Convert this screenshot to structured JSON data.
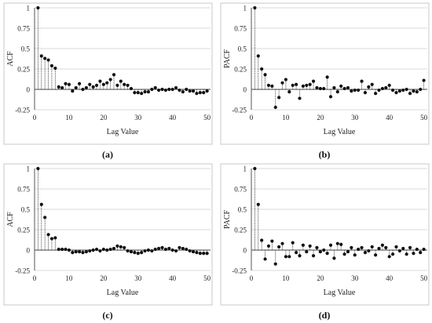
{
  "chart_data": [
    {
      "type": "stem",
      "caption": "(a)",
      "ylabel": "ACF",
      "xlabel": "Lag Value",
      "xlim": [
        0,
        51
      ],
      "ylim": [
        -0.25,
        1
      ],
      "xticks": [
        "0",
        "10",
        "20",
        "30",
        "40",
        "50"
      ],
      "yticks": [
        "1",
        "0.75",
        "0.5",
        "0.25",
        "0",
        "-0.25"
      ],
      "x": [
        1,
        2,
        3,
        4,
        5,
        6,
        7,
        8,
        9,
        10,
        11,
        12,
        13,
        14,
        15,
        16,
        17,
        18,
        19,
        20,
        21,
        22,
        23,
        24,
        25,
        26,
        27,
        28,
        29,
        30,
        31,
        32,
        33,
        34,
        35,
        36,
        37,
        38,
        39,
        40,
        41,
        42,
        43,
        44,
        45,
        46,
        47,
        48,
        49,
        50
      ],
      "values": [
        1.0,
        0.41,
        0.38,
        0.36,
        0.29,
        0.26,
        0.03,
        0.02,
        0.07,
        0.06,
        -0.02,
        0.02,
        0.07,
        0.0,
        0.02,
        0.06,
        0.03,
        0.05,
        0.1,
        0.06,
        0.08,
        0.12,
        0.18,
        0.05,
        0.1,
        0.06,
        0.05,
        0.01,
        -0.04,
        -0.04,
        -0.05,
        -0.03,
        -0.03,
        0.0,
        0.02,
        -0.01,
        0.0,
        -0.01,
        0.0,
        0.0,
        0.02,
        -0.01,
        -0.03,
        0.0,
        -0.02,
        -0.02,
        -0.05,
        -0.04,
        -0.04,
        -0.02
      ]
    },
    {
      "type": "stem",
      "caption": "(b)",
      "ylabel": "PACF",
      "xlabel": "Lag Value",
      "xlim": [
        0,
        51
      ],
      "ylim": [
        -0.25,
        1
      ],
      "xticks": [
        "0",
        "10",
        "20",
        "30",
        "40",
        "50"
      ],
      "yticks": [
        "1",
        "0.75",
        "0.5",
        "0.25",
        "0",
        "-0.25"
      ],
      "x": [
        1,
        2,
        3,
        4,
        5,
        6,
        7,
        8,
        9,
        10,
        11,
        12,
        13,
        14,
        15,
        16,
        17,
        18,
        19,
        20,
        21,
        22,
        23,
        24,
        25,
        26,
        27,
        28,
        29,
        30,
        31,
        32,
        33,
        34,
        35,
        36,
        37,
        38,
        39,
        40,
        41,
        42,
        43,
        44,
        45,
        46,
        47,
        48,
        49,
        50
      ],
      "values": [
        1.0,
        0.41,
        0.25,
        0.18,
        0.05,
        0.04,
        -0.22,
        -0.1,
        0.08,
        0.12,
        -0.03,
        0.05,
        0.06,
        -0.11,
        0.04,
        0.05,
        0.06,
        0.1,
        0.02,
        0.01,
        0.01,
        0.15,
        -0.09,
        0.02,
        -0.03,
        0.04,
        0.01,
        0.02,
        -0.02,
        -0.01,
        -0.01,
        0.1,
        -0.04,
        0.03,
        0.06,
        -0.05,
        -0.01,
        0.01,
        0.02,
        0.05,
        -0.01,
        -0.04,
        -0.02,
        -0.01,
        0.0,
        -0.05,
        -0.02,
        -0.03,
        0.0,
        0.11
      ]
    },
    {
      "type": "stem",
      "caption": "(c)",
      "ylabel": "ACF",
      "xlabel": "Lag Value",
      "xlim": [
        0,
        51
      ],
      "ylim": [
        -0.25,
        1
      ],
      "xticks": [
        "0",
        "10",
        "20",
        "30",
        "40",
        "50"
      ],
      "yticks": [
        "1",
        "0.75",
        "0.5",
        "0.25",
        "0",
        "-0.25"
      ],
      "x": [
        1,
        2,
        3,
        4,
        5,
        6,
        7,
        8,
        9,
        10,
        11,
        12,
        13,
        14,
        15,
        16,
        17,
        18,
        19,
        20,
        21,
        22,
        23,
        24,
        25,
        26,
        27,
        28,
        29,
        30,
        31,
        32,
        33,
        34,
        35,
        36,
        37,
        38,
        39,
        40,
        41,
        42,
        43,
        44,
        45,
        46,
        47,
        48,
        49,
        50
      ],
      "values": [
        1.0,
        0.56,
        0.4,
        0.19,
        0.14,
        0.15,
        0.01,
        0.01,
        0.01,
        0.0,
        -0.03,
        -0.02,
        -0.02,
        -0.03,
        -0.02,
        -0.01,
        0.0,
        0.01,
        -0.01,
        0.01,
        0.0,
        0.01,
        0.02,
        0.05,
        0.04,
        0.03,
        -0.01,
        -0.02,
        -0.03,
        -0.04,
        -0.03,
        -0.01,
        0.0,
        -0.01,
        0.01,
        0.02,
        0.03,
        0.01,
        0.02,
        0.0,
        -0.01,
        0.03,
        0.02,
        0.01,
        -0.01,
        -0.02,
        -0.03,
        -0.04,
        -0.04,
        -0.04
      ]
    },
    {
      "type": "stem",
      "caption": "(d)",
      "ylabel": "PACF",
      "xlabel": "Lag Value",
      "xlim": [
        0,
        51
      ],
      "ylim": [
        -0.25,
        1
      ],
      "xticks": [
        "0",
        "10",
        "20",
        "30",
        "40",
        "50"
      ],
      "yticks": [
        "1",
        "0.75",
        "0.5",
        "0.25",
        "0",
        "-0.25"
      ],
      "x": [
        1,
        2,
        3,
        4,
        5,
        6,
        7,
        8,
        9,
        10,
        11,
        12,
        13,
        14,
        15,
        16,
        17,
        18,
        19,
        20,
        21,
        22,
        23,
        24,
        25,
        26,
        27,
        28,
        29,
        30,
        31,
        32,
        33,
        34,
        35,
        36,
        37,
        38,
        39,
        40,
        41,
        42,
        43,
        44,
        45,
        46,
        47,
        48,
        49,
        50
      ],
      "values": [
        1.0,
        0.56,
        0.12,
        -0.11,
        0.05,
        0.11,
        -0.17,
        0.04,
        0.08,
        -0.08,
        -0.08,
        0.09,
        -0.03,
        -0.07,
        0.06,
        -0.02,
        0.05,
        -0.07,
        0.03,
        -0.02,
        0.0,
        -0.04,
        0.06,
        -0.1,
        0.08,
        0.07,
        -0.05,
        -0.02,
        0.03,
        -0.06,
        0.01,
        0.03,
        -0.03,
        -0.01,
        0.04,
        -0.06,
        0.02,
        0.06,
        0.03,
        -0.08,
        -0.05,
        0.04,
        -0.01,
        0.02,
        -0.05,
        0.03,
        -0.04,
        0.01,
        -0.03,
        0.01
      ]
    }
  ]
}
